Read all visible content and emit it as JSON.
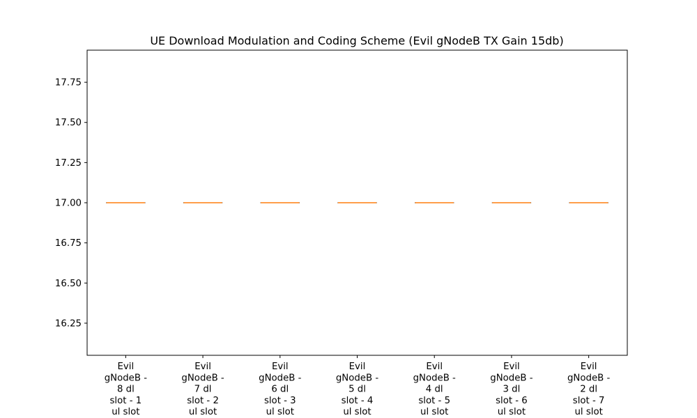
{
  "chart_data": {
    "type": "box",
    "title": "UE Download Modulation and Coding Scheme (Evil gNodeB TX Gain 15db)",
    "xlabel": "",
    "ylabel": "",
    "ylim": [
      16.05,
      17.95
    ],
    "yticks": [
      "16.25",
      "16.50",
      "16.75",
      "17.00",
      "17.25",
      "17.50",
      "17.75"
    ],
    "ytick_values": [
      16.25,
      16.5,
      16.75,
      17.0,
      17.25,
      17.5,
      17.75
    ],
    "categories": [
      [
        "Evil",
        "gNodeB -",
        "8 dl",
        "slot - 1",
        "ul slot"
      ],
      [
        "Evil",
        "gNodeB -",
        "7 dl",
        "slot - 2",
        "ul slot"
      ],
      [
        "Evil",
        "gNodeB -",
        "6 dl",
        "slot - 3",
        "ul slot"
      ],
      [
        "Evil",
        "gNodeB -",
        "5 dl",
        "slot - 4",
        "ul slot"
      ],
      [
        "Evil",
        "gNodeB -",
        "4 dl",
        "slot - 5",
        "ul slot"
      ],
      [
        "Evil",
        "gNodeB -",
        "3 dl",
        "slot - 6",
        "ul slot"
      ],
      [
        "Evil",
        "gNodeB -",
        "2 dl",
        "slot - 7",
        "ul slot"
      ]
    ],
    "boxes": [
      {
        "min": 17.0,
        "q1": 17.0,
        "median": 17.0,
        "q3": 17.0,
        "max": 17.0
      },
      {
        "min": 17.0,
        "q1": 17.0,
        "median": 17.0,
        "q3": 17.0,
        "max": 17.0
      },
      {
        "min": 17.0,
        "q1": 17.0,
        "median": 17.0,
        "q3": 17.0,
        "max": 17.0
      },
      {
        "min": 17.0,
        "q1": 17.0,
        "median": 17.0,
        "q3": 17.0,
        "max": 17.0
      },
      {
        "min": 17.0,
        "q1": 17.0,
        "median": 17.0,
        "q3": 17.0,
        "max": 17.0
      },
      {
        "min": 17.0,
        "q1": 17.0,
        "median": 17.0,
        "q3": 17.0,
        "max": 17.0
      },
      {
        "min": 17.0,
        "q1": 17.0,
        "median": 17.0,
        "q3": 17.0,
        "max": 17.0
      }
    ],
    "grid": false,
    "colors": {
      "box": "#000000",
      "median": "#ff7f0e",
      "axes": "#000000"
    }
  }
}
